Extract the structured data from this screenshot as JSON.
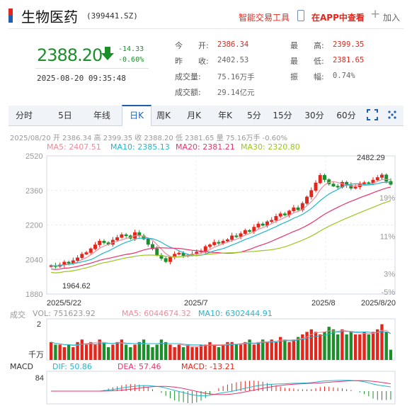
{
  "header": {
    "title": "生物医药",
    "code": "(399441.SZ)",
    "tool_label": "智能交易工具",
    "app_label": "在APP中查看",
    "add_label": "加入"
  },
  "quote": {
    "price": "2388.20",
    "change": "-14.33",
    "change_pct": "-0.60%",
    "timestamp": "2025-08-20 09:35:48",
    "fields": [
      {
        "label": "今　　开:",
        "value": "2386.34",
        "color": "red"
      },
      {
        "label": "昨　　收:",
        "value": "2402.53",
        "color": "gray"
      },
      {
        "label": "成交量:",
        "value": "75.16万手",
        "color": "gray"
      },
      {
        "label": "成交额:",
        "value": "29.14亿元",
        "color": "gray"
      },
      {
        "label": "最　　高:",
        "value": "2399.35",
        "color": "red"
      },
      {
        "label": "最　　低:",
        "value": "2381.65",
        "color": "red"
      },
      {
        "label": "振　　幅:",
        "value": "0.74%",
        "color": "gray"
      }
    ]
  },
  "tabs": [
    "分时",
    "5日",
    "年线",
    "日K",
    "周K",
    "月K",
    "年K",
    "5分",
    "15分",
    "30分",
    "60分"
  ],
  "active_tab": "日K",
  "chart_info": "2025/08/20 开 2386.34 高 2399.35 收 2388.20 低 2381.65 量 75.16万手 -0.60%",
  "ma": {
    "ma5": "MA5: 2407.51",
    "ma10": "MA10: 2385.13",
    "ma20": "MA20: 2381.21",
    "ma30": "MA30: 2320.80"
  },
  "volume_info": {
    "label": "成交",
    "vol": "VOL: 751623.92",
    "ma5": "MA5: 6044674.32",
    "ma10": "MA10: 6302444.91"
  },
  "macd_info": {
    "label": "MACD",
    "dif": "DIF: 50.86",
    "dea": "DEA: 57.46",
    "macd": "MACD: -13.21"
  },
  "colors": {
    "up": "#e2261c",
    "down": "#1a8f2a",
    "ma5": "#f08a9a",
    "ma10": "#22b5cc",
    "ma20": "#e8336a",
    "ma30": "#9ac71e",
    "accent": "#1e5fb3"
  },
  "chart_data": {
    "type": "candlestick",
    "y_axis": [
      "2520",
      "2360",
      "2200",
      "2040",
      "1880"
    ],
    "y_range": [
      1880,
      2520
    ],
    "pct_axis": [
      "19%",
      "11%",
      "3%",
      "-5%"
    ],
    "x_axis": [
      "2025/5/22",
      "2025/7",
      "2025/8",
      "2025/8/20"
    ],
    "high_label": "2482.29",
    "low_label": "1964.62",
    "volume_axis": [
      "2",
      "千万"
    ],
    "macd_axis": [
      "84"
    ],
    "closes": [
      2012,
      2008,
      2015,
      2028,
      2022,
      2035,
      2048,
      2065,
      2072,
      2090,
      2108,
      2125,
      2118,
      2110,
      2130,
      2142,
      2155,
      2150,
      2138,
      2165,
      2150,
      2135,
      2110,
      2090,
      2060,
      2045,
      2030,
      2050,
      2065,
      2070,
      2058,
      2060,
      2065,
      2075,
      2080,
      2100,
      2108,
      2120,
      2115,
      2125,
      2132,
      2150,
      2146,
      2160,
      2175,
      2170,
      2190,
      2205,
      2198,
      2215,
      2222,
      2240,
      2252,
      2246,
      2265,
      2280,
      2270,
      2300,
      2330,
      2360,
      2395,
      2430,
      2410,
      2390,
      2380,
      2375,
      2398,
      2384,
      2370,
      2376,
      2392,
      2396,
      2394,
      2408,
      2420,
      2432,
      2402,
      2388
    ],
    "volumes": [
      7,
      6,
      6,
      5,
      6,
      5,
      7,
      8,
      6,
      7,
      6,
      8,
      7,
      5,
      6,
      7,
      8,
      6,
      5,
      6,
      7,
      8,
      6,
      5,
      6,
      8,
      7,
      6,
      5,
      6,
      5,
      6,
      5,
      5,
      6,
      6,
      7,
      6,
      5,
      6,
      7,
      7,
      6,
      6,
      7,
      8,
      6,
      7,
      8,
      7,
      8,
      7,
      9,
      8,
      7,
      8,
      9,
      10,
      11,
      12,
      11,
      10,
      11,
      13,
      12,
      10,
      12,
      10,
      11,
      10,
      10,
      11,
      10,
      11,
      12,
      14,
      11,
      4
    ]
  }
}
